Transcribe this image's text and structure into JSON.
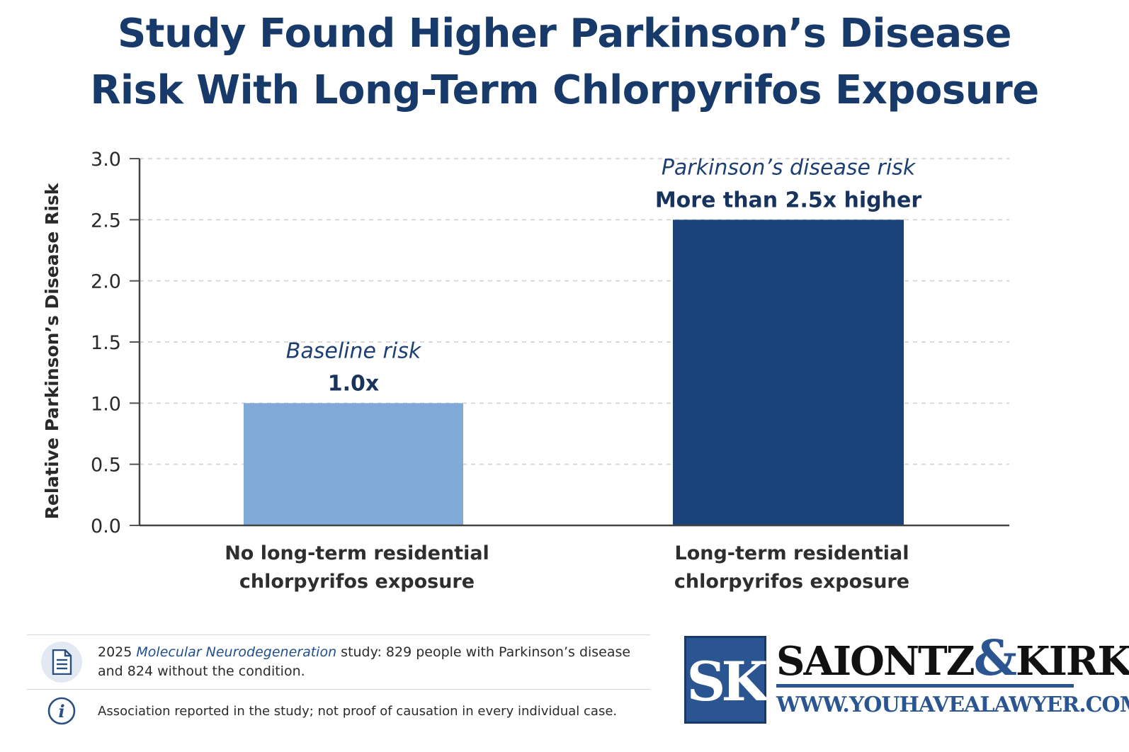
{
  "title": {
    "line1": "Study Found Higher Parkinson’s Disease",
    "line2": "Risk With Long-Term Chlorpyrifos Exposure"
  },
  "colors": {
    "title": "#173a6b",
    "bar_baseline": "#82aad8",
    "bar_exposed": "#1a4379",
    "annotation": "#1d3f72"
  },
  "chart_data": {
    "type": "bar",
    "ylabel": "Relative Parkinson’s Disease Risk",
    "ylim": [
      0,
      3.0
    ],
    "yticks": [
      "0.0",
      "0.5",
      "1.0",
      "1.5",
      "2.0",
      "2.5",
      "3.0"
    ],
    "ytick_values": [
      0,
      0.5,
      1.0,
      1.5,
      2.0,
      2.5,
      3.0
    ],
    "grid": "horizontal-dashed",
    "categories": [
      [
        "No long-term residential",
        "chlorpyrifos exposure"
      ],
      [
        "Long-term residential",
        "chlorpyrifos exposure"
      ]
    ],
    "values": [
      1.0,
      2.5
    ],
    "annotations": [
      {
        "italic": "Baseline risk",
        "bold": "1.0x"
      },
      {
        "italic": "Parkinson’s disease risk",
        "bold": "More than 2.5x higher"
      }
    ]
  },
  "footer": {
    "study_prefix": "2025 ",
    "study_journal": "Molecular Neurodegeneration",
    "study_rest_line1": " study: 829 people with Parkinson’s disease",
    "study_line2": "and 824 without the condition.",
    "disclaimer": "Association reported in the study; not proof of causation in every individual case.",
    "doc_icon": "document-icon",
    "info_icon": "info-icon"
  },
  "logo": {
    "monogram": "SK",
    "name_left": "SAIONTZ",
    "ampersand": "&",
    "name_right": "KIRK",
    "url": "WWW.YOUHAVEALAWYER.COM"
  }
}
